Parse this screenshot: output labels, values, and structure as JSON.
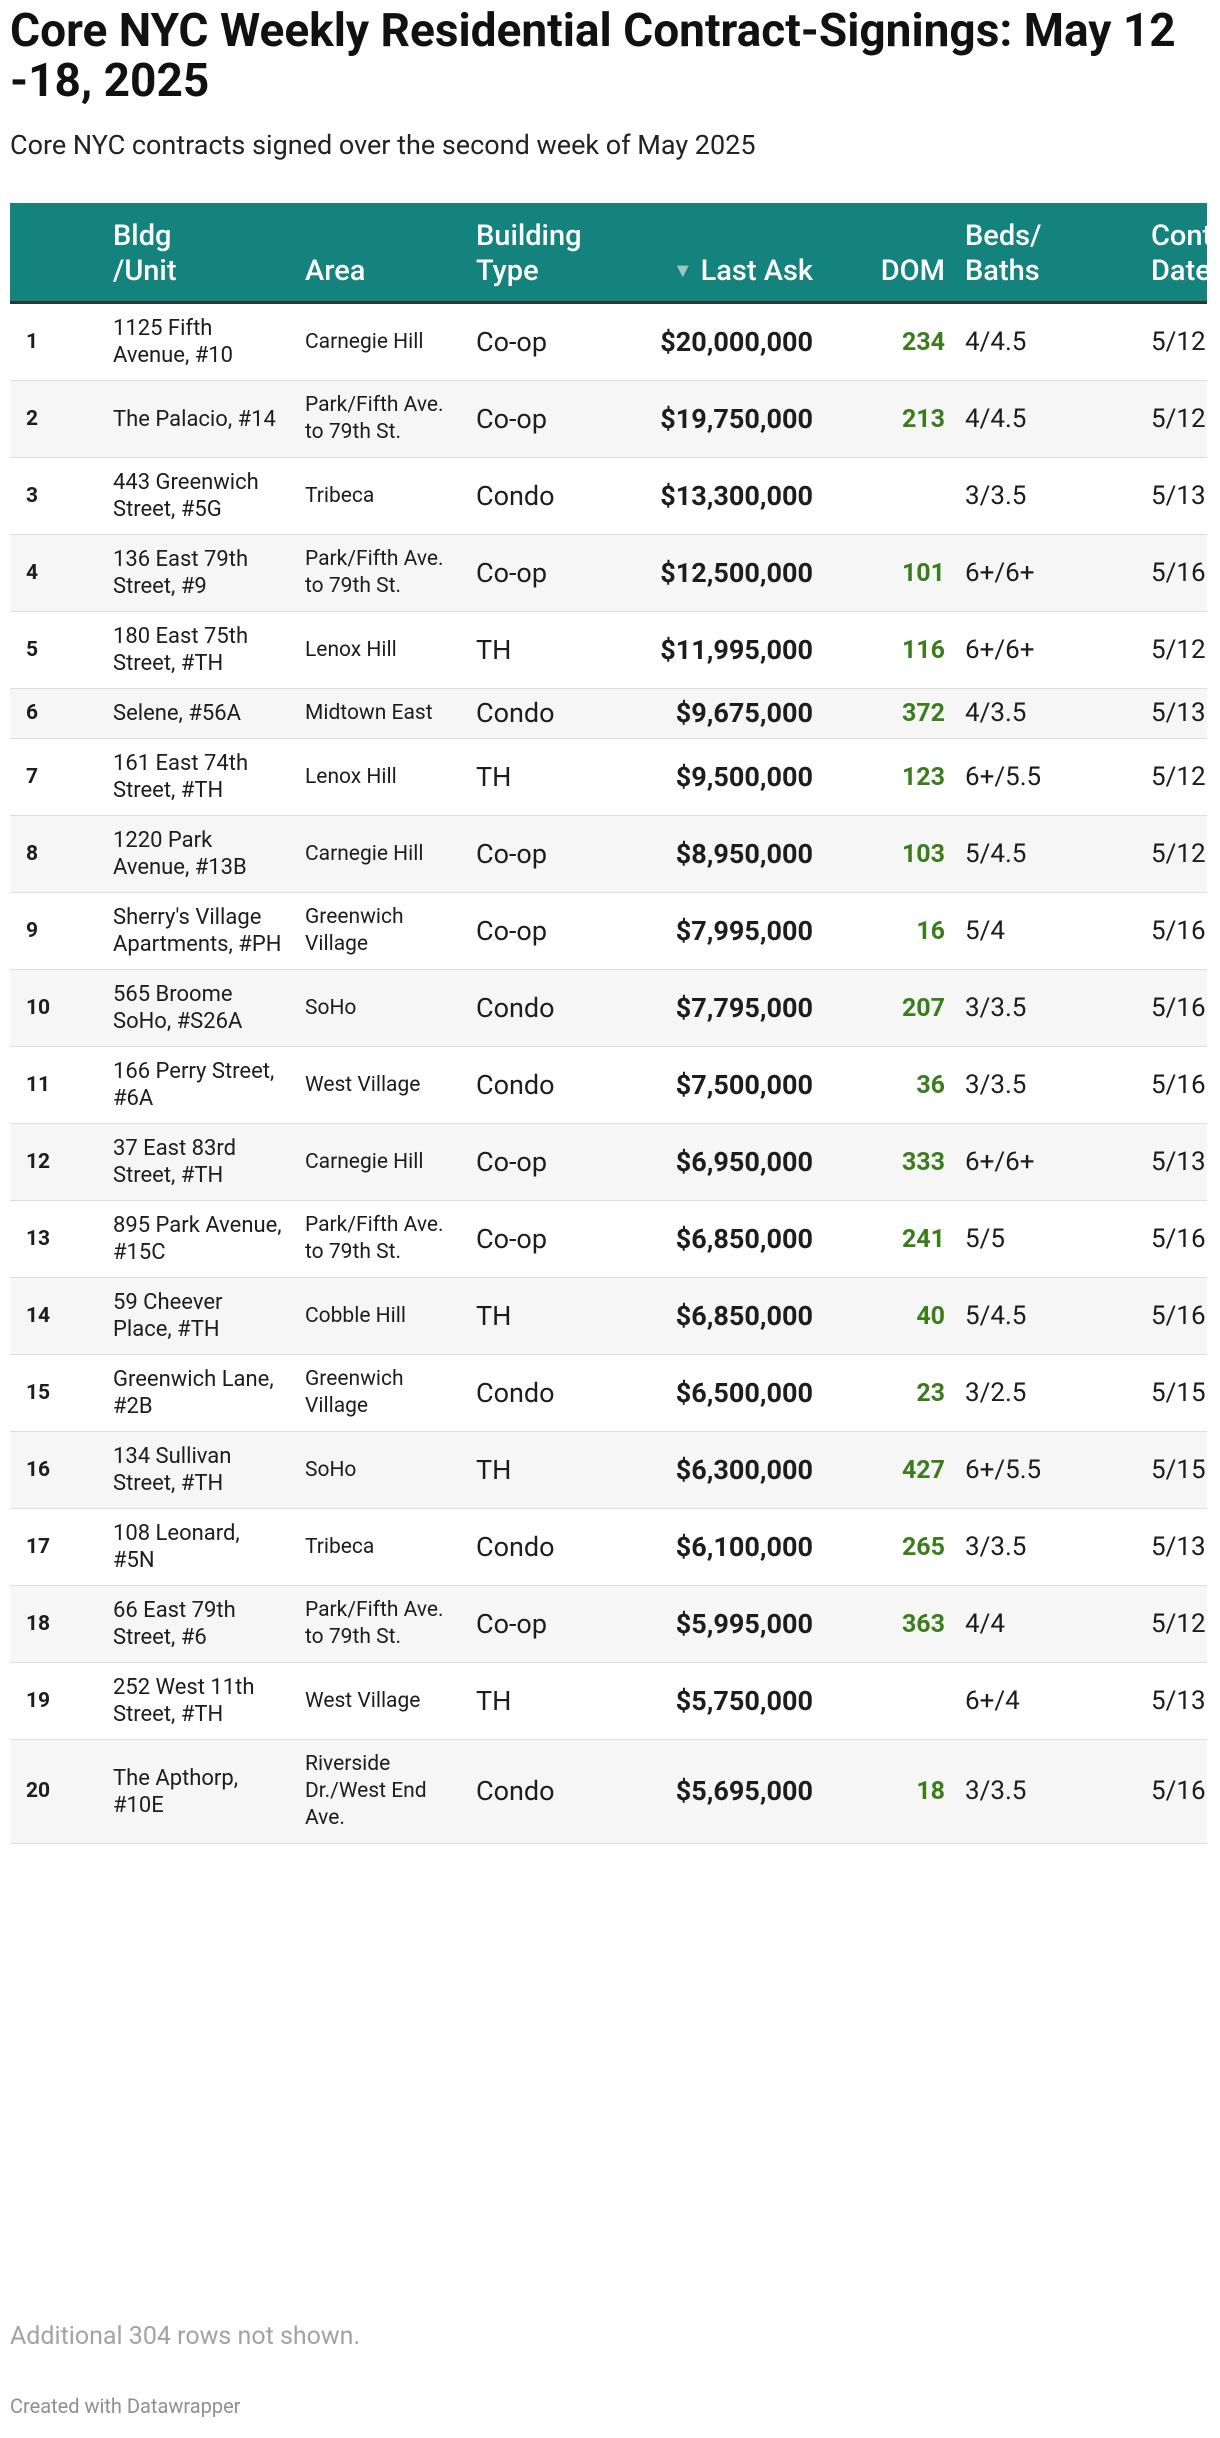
{
  "header": {
    "title": "Core NYC Weekly Residential Contract-Signings: May 12 -18, 2025",
    "subtitle": "Core NYC contracts signed over the second week of May 2025"
  },
  "table": {
    "columns": [
      "",
      "Bldg\n/Unit",
      "Area",
      "Building\nType",
      "Last Ask",
      "DOM",
      "Beds/\nBaths",
      "Contract\nDate"
    ],
    "rows": [
      [
        1,
        "1125 Fifth Avenue, #10",
        "Carnegie Hill",
        "Co-op",
        "$20,000,000",
        234,
        "4/4.5",
        "5/12"
      ],
      [
        2,
        "The Palacio, #14",
        "Park/Fifth Ave. to 79th St.",
        "Co-op",
        "$19,750,000",
        213,
        "4/4.5",
        "5/12"
      ],
      [
        3,
        "443 Greenwich Street, #5G",
        "Tribeca",
        "Condo",
        "$13,300,000",
        null,
        "3/3.5",
        "5/13"
      ],
      [
        4,
        "136 East 79th Street, #9",
        "Park/Fifth Ave. to 79th St.",
        "Co-op",
        "$12,500,000",
        101,
        "6+/6+",
        "5/16"
      ],
      [
        5,
        "180 East 75th Street, #TH",
        "Lenox Hill",
        "TH",
        "$11,995,000",
        116,
        "6+/6+",
        "5/12"
      ],
      [
        6,
        "Selene, #56A",
        "Midtown East",
        "Condo",
        "$9,675,000",
        372,
        "4/3.5",
        "5/13"
      ],
      [
        7,
        "161 East 74th Street, #TH",
        "Lenox Hill",
        "TH",
        "$9,500,000",
        123,
        "6+/5.5",
        "5/12"
      ],
      [
        8,
        "1220 Park Avenue, #13B",
        "Carnegie Hill",
        "Co-op",
        "$8,950,000",
        103,
        "5/4.5",
        "5/12"
      ],
      [
        9,
        "Sherry's Village Apartments, #PH",
        "Greenwich Village",
        "Co-op",
        "$7,995,000",
        16,
        "5/4",
        "5/16"
      ],
      [
        10,
        "565 Broome SoHo, #S26A",
        "SoHo",
        "Condo",
        "$7,795,000",
        207,
        "3/3.5",
        "5/16"
      ],
      [
        11,
        "166 Perry Street, #6A",
        "West Village",
        "Condo",
        "$7,500,000",
        36,
        "3/3.5",
        "5/16"
      ],
      [
        12,
        "37 East 83rd Street, #TH",
        "Carnegie Hill",
        "Co-op",
        "$6,950,000",
        333,
        "6+/6+",
        "5/13"
      ],
      [
        13,
        "895 Park Avenue, #15C",
        "Park/Fifth Ave. to 79th St.",
        "Co-op",
        "$6,850,000",
        241,
        "5/5",
        "5/16"
      ],
      [
        14,
        "59 Cheever Place, #TH",
        "Cobble Hill",
        "TH",
        "$6,850,000",
        40,
        "5/4.5",
        "5/16"
      ],
      [
        15,
        "Greenwich Lane, #2B",
        "Greenwich Village",
        "Condo",
        "$6,500,000",
        23,
        "3/2.5",
        "5/15"
      ],
      [
        16,
        "134 Sullivan Street, #TH",
        "SoHo",
        "TH",
        "$6,300,000",
        427,
        "6+/5.5",
        "5/15"
      ],
      [
        17,
        "108 Leonard, #5N",
        "Tribeca",
        "Condo",
        "$6,100,000",
        265,
        "3/3.5",
        "5/13"
      ],
      [
        18,
        "66 East 79th Street, #6",
        "Park/Fifth Ave. to 79th St.",
        "Co-op",
        "$5,995,000",
        363,
        "4/4",
        "5/12"
      ],
      [
        19,
        "252 West 11th Street, #TH",
        "West Village",
        "TH",
        "$5,750,000",
        null,
        "6+/4",
        "5/13"
      ],
      [
        20,
        "The Apthorp, #10E",
        "Riverside Dr./West End Ave.",
        "Condo",
        "$5,695,000",
        18,
        "3/3.5",
        "5/16"
      ]
    ]
  },
  "footer": {
    "note": "Additional 304 rows not shown.",
    "credit": "Created with Datawrapper"
  }
}
